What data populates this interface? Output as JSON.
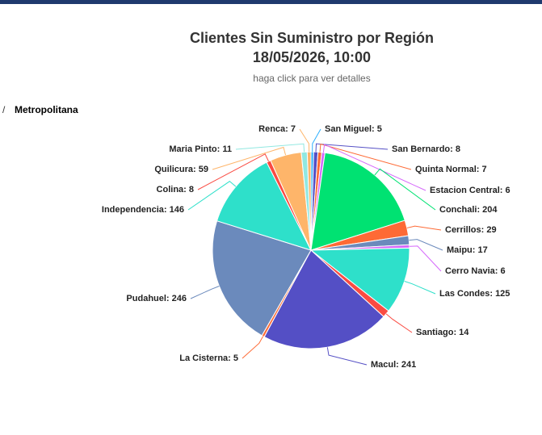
{
  "breadcrumb": {
    "separator": "/",
    "current": "Metropolitana"
  },
  "chart_data": {
    "type": "pie",
    "title": [
      "Clientes Sin Suministro por Región",
      "18/05/2026, 10:00"
    ],
    "subtitle": "haga click para ver detalles",
    "values": [
      5,
      8,
      7,
      6,
      204,
      29,
      17,
      6,
      125,
      14,
      241,
      5,
      246,
      146,
      8,
      59,
      11,
      7
    ],
    "value_labels": [
      "San Miguel: 5",
      "San Bernardo: 8",
      "Quinta Normal: 7",
      "Estacion Central: 6",
      "Conchali: 204",
      "Cerrillos: 29",
      "Maipu: 17",
      "Cerro Navia: 6",
      "Las Condes: 125",
      "Santiago: 14",
      "Macul: 241",
      "La Cisterna: 5",
      "Pudahuel: 246",
      "Independencia: 146",
      "Colina: 8",
      "Quilicura: 59",
      "Maria Pinto: 11",
      "Renca: 7"
    ],
    "colors": [
      "#2caffe",
      "#544fc5",
      "#fe6a35",
      "#d568fb",
      "#00e272",
      "#fe6a35",
      "#6b8abc",
      "#d568fb",
      "#2ee0ca",
      "#fa4b42",
      "#544fc5",
      "#fe6a35",
      "#6b8abc",
      "#2ee0ca",
      "#fa4b42",
      "#feb56a",
      "#91e8e1",
      "#feb56a"
    ]
  }
}
